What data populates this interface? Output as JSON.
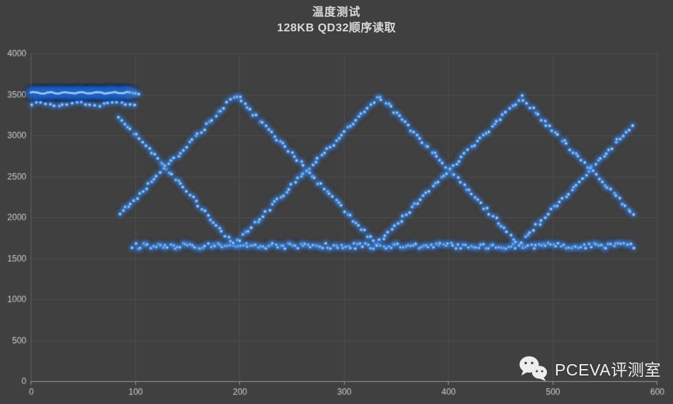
{
  "watermark": {
    "brand": "PCEVA评测室",
    "icon": "wechat-icon"
  },
  "colors": {
    "background": "#404040",
    "grid": "#4e4e4e",
    "axis_line_bottom": "#9a9a9a",
    "axis_line_left": "#606060",
    "axis_label": "#cbcbcb",
    "title_text": "#d9d9d9",
    "dot_core": "#c3daf2",
    "dot_glow": "#3d7fd0",
    "band_core": "#9cc6f2",
    "band_glow": "#2f6cc2",
    "watermark_text": "#f0f0f0"
  },
  "chart_data": {
    "type": "scatter",
    "title": "温度测试",
    "subtitle": "128KB QD32顺序读取",
    "xlabel": "",
    "ylabel": "",
    "xlim": [
      0,
      600
    ],
    "ylim": [
      0,
      4000
    ],
    "x_ticks": [
      0,
      100,
      200,
      300,
      400,
      500,
      600
    ],
    "y_ticks": [
      0,
      500,
      1000,
      1500,
      2000,
      2500,
      3000,
      3500,
      4000
    ],
    "grid": true,
    "legend": "none",
    "series": [
      {
        "name": "initial-full-speed-band",
        "style": "dense_band",
        "y": 3520,
        "x_start": 0,
        "x_end": 97,
        "sample_interval": 0.5,
        "jitter": 26,
        "tail_points": [
          [
            98.4,
            3516
          ],
          [
            100.6,
            3512
          ],
          [
            103.6,
            3505
          ]
        ]
      },
      {
        "name": "secondary-flat-dots",
        "style": "dots",
        "y": 3382,
        "x_start": 1,
        "x_end": 102,
        "sample_interval": 4.3,
        "jitter": 13,
        "wave_amp": 16,
        "wave_period": 36
      },
      {
        "name": "triangle-wave-descending-first",
        "style": "dots",
        "vertices": [
          [
            85,
            3240
          ],
          [
            195,
            1665
          ],
          [
            334,
            3485
          ],
          [
            468,
            1675
          ],
          [
            577,
            3120
          ]
        ],
        "sample_interval": 2.8,
        "jitter": 24
      },
      {
        "name": "triangle-wave-ascending-first",
        "style": "dots",
        "vertices": [
          [
            85,
            2030
          ],
          [
            197,
            3495
          ],
          [
            332,
            1670
          ],
          [
            470,
            3465
          ],
          [
            578,
            2035
          ]
        ],
        "sample_interval": 2.8,
        "jitter": 24
      },
      {
        "name": "throttled-low-speed-line",
        "style": "dots",
        "y": 1652,
        "x_start": 98,
        "x_end": 578,
        "sample_interval": 2.4,
        "jitter": 34
      }
    ]
  }
}
